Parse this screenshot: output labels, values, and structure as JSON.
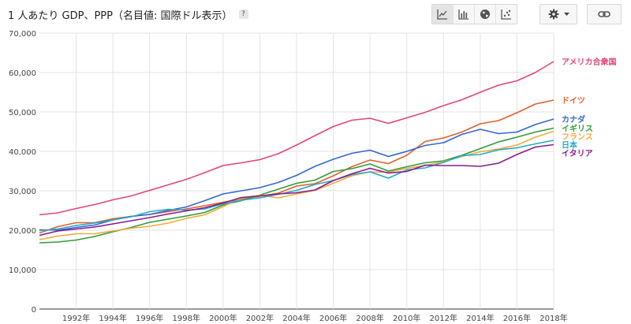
{
  "header": {
    "title": "1 人あたり GDP、PPP（名目値: 国際ドル表示）",
    "help": "?"
  },
  "toolbar": {
    "line_icon": "line-chart-icon",
    "bar_icon": "bar-chart-icon",
    "map_icon": "globe-icon",
    "scatter_icon": "scatter-chart-icon",
    "settings_icon": "gear-icon",
    "dropdown_icon": "caret-down-icon",
    "link_icon": "link-icon"
  },
  "chart_data": {
    "type": "line",
    "title": "1 人あたり GDP、PPP（名目値: 国際ドル表示）",
    "ylim": [
      0,
      70000
    ],
    "xlim": [
      1990,
      2018
    ],
    "yticks": [
      0,
      10000,
      20000,
      30000,
      40000,
      50000,
      60000,
      70000
    ],
    "ytick_labels": [
      "0",
      "10,000",
      "20,000",
      "30,000",
      "40,000",
      "50,000",
      "60,000",
      "70,000"
    ],
    "xticks": [
      1992,
      1994,
      1996,
      1998,
      2000,
      2002,
      2004,
      2006,
      2008,
      2010,
      2012,
      2014,
      2016,
      2018
    ],
    "xtick_labels": [
      "1992年",
      "1994年",
      "1996年",
      "1998年",
      "2000年",
      "2002年",
      "2004年",
      "2006年",
      "2008年",
      "2010年",
      "2012年",
      "2014年",
      "2016年",
      "2018年"
    ],
    "grid": true,
    "legend": "right (inline labels at series ends)",
    "x": [
      1990,
      1991,
      1992,
      1993,
      1994,
      1995,
      1996,
      1997,
      1998,
      1999,
      2000,
      2001,
      2002,
      2003,
      2004,
      2005,
      2006,
      2007,
      2008,
      2009,
      2010,
      2011,
      2012,
      2013,
      2014,
      2015,
      2016,
      2017,
      2018
    ],
    "series": [
      {
        "name": "アメリカ合衆国",
        "color": "#e0457b",
        "values": [
          23900,
          24400,
          25500,
          26500,
          27700,
          28700,
          30100,
          31500,
          32900,
          34600,
          36400,
          37100,
          37900,
          39400,
          41600,
          44000,
          46300,
          47900,
          48400,
          47100,
          48500,
          49900,
          51600,
          53100,
          55000,
          56800,
          57900,
          60000,
          62800
        ]
      },
      {
        "name": "ドイツ",
        "color": "#e0602b",
        "values": [
          19300,
          20900,
          21900,
          21900,
          22900,
          23500,
          24000,
          24700,
          25400,
          26200,
          27100,
          27900,
          28600,
          29400,
          31200,
          31800,
          33800,
          36100,
          37800,
          36900,
          39000,
          42500,
          43400,
          44900,
          47000,
          47800,
          49800,
          52000,
          53000
        ]
      },
      {
        "name": "カナダ",
        "color": "#3366cc",
        "values": [
          20100,
          20000,
          20700,
          21300,
          22600,
          23500,
          24000,
          25000,
          25900,
          27500,
          29200,
          30000,
          30800,
          32100,
          33900,
          36200,
          38000,
          39500,
          40300,
          38700,
          40000,
          41500,
          42200,
          44300,
          45600,
          44500,
          44900,
          46800,
          48200
        ]
      },
      {
        "name": "イギリス",
        "color": "#2e9e3a",
        "values": [
          16800,
          17000,
          17500,
          18400,
          19600,
          20700,
          22000,
          22800,
          23600,
          24500,
          26400,
          27500,
          28900,
          30400,
          31900,
          32700,
          34900,
          35600,
          36800,
          35000,
          36100,
          37100,
          37600,
          39000,
          40700,
          42400,
          43600,
          44900,
          45900
        ]
      },
      {
        "name": "フランス",
        "color": "#f4a93a",
        "values": [
          17600,
          18500,
          19100,
          19100,
          19800,
          20500,
          21000,
          21800,
          23000,
          23900,
          26000,
          28100,
          28900,
          28200,
          29200,
          30100,
          31900,
          33800,
          34800,
          34700,
          35700,
          36400,
          37400,
          38700,
          39900,
          40600,
          41600,
          43600,
          45100
        ]
      },
      {
        "name": "日本",
        "color": "#22aacc",
        "values": [
          19900,
          20300,
          21200,
          21800,
          22600,
          23400,
          24700,
          25300,
          25100,
          25400,
          26700,
          27600,
          28200,
          29100,
          30100,
          31600,
          32600,
          34100,
          34800,
          33200,
          35300,
          35800,
          37200,
          38900,
          39200,
          40400,
          40900,
          41900,
          42800
        ]
      },
      {
        "name": "イタリア",
        "color": "#8b1a8b",
        "values": [
          18700,
          19800,
          20300,
          20800,
          21600,
          22400,
          23200,
          24100,
          24900,
          25700,
          26900,
          28300,
          28700,
          29200,
          29500,
          30200,
          32600,
          34300,
          35700,
          34500,
          34900,
          36500,
          36400,
          36400,
          36200,
          37000,
          39200,
          41100,
          41700
        ]
      }
    ]
  }
}
